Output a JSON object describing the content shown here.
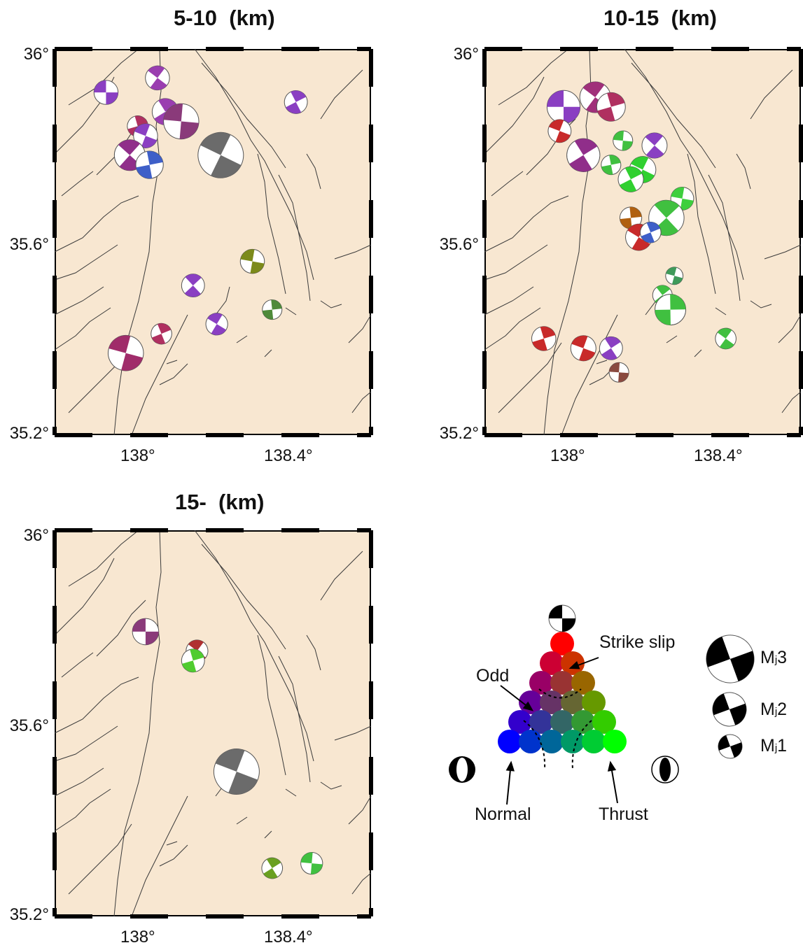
{
  "panels": [
    {
      "title": "5-10  (km)",
      "lat_labels": [
        "36°",
        "35.6°",
        "35.2°"
      ],
      "lon_labels": [
        "138°",
        "138.4°"
      ]
    },
    {
      "title": "10-15  (km)",
      "lat_labels": [
        "36°",
        "35.6°",
        "35.2°"
      ],
      "lon_labels": [
        "138°",
        "138.4°"
      ]
    },
    {
      "title": "15-  (km)",
      "lat_labels": [
        "36°",
        "35.6°",
        "35.2°"
      ],
      "lon_labels": [
        "138°",
        "138.4°"
      ]
    }
  ],
  "legend": {
    "strike_slip": "Strike slip",
    "odd": "Odd",
    "normal": "Normal",
    "thrust": "Thrust",
    "mj_prefix": "M",
    "mj_sub": "j",
    "magnitudes": [
      "3",
      "2",
      "1"
    ]
  },
  "colors": {
    "land": "#f8e7d1",
    "fault": "#444444",
    "strike_slip": "#ff2020",
    "normal": "#2020ff",
    "thrust": "#20ff20",
    "odd": "#9a30c8"
  },
  "events": {
    "panel_5_10": [
      {
        "lon": 137.93,
        "lat": 35.91,
        "mag": 1.4,
        "color": "#8a3fc2"
      },
      {
        "lon": 138.06,
        "lat": 35.94,
        "mag": 1.4,
        "color": "#9a3db0"
      },
      {
        "lon": 138.01,
        "lat": 35.84,
        "mag": 1.1,
        "color": "#b03060"
      },
      {
        "lon": 138.03,
        "lat": 35.82,
        "mag": 1.4,
        "color": "#8a3fc2"
      },
      {
        "lon": 138.08,
        "lat": 35.87,
        "mag": 1.6,
        "color": "#9a3db0"
      },
      {
        "lon": 138.12,
        "lat": 35.85,
        "mag": 2.4,
        "color": "#8a3a7a"
      },
      {
        "lon": 137.99,
        "lat": 35.78,
        "mag": 2.0,
        "color": "#902e8a"
      },
      {
        "lon": 138.04,
        "lat": 35.76,
        "mag": 1.7,
        "color": "#3e5fc8"
      },
      {
        "lon": 138.22,
        "lat": 35.78,
        "mag": 3.3,
        "color": "#6b6b6b"
      },
      {
        "lon": 138.41,
        "lat": 35.89,
        "mag": 1.3,
        "color": "#8a3fc2"
      },
      {
        "lon": 138.3,
        "lat": 35.56,
        "mag": 1.4,
        "color": "#7c8a1a"
      },
      {
        "lon": 138.15,
        "lat": 35.51,
        "mag": 1.3,
        "color": "#8a3fc2"
      },
      {
        "lon": 138.35,
        "lat": 35.46,
        "mag": 1.0,
        "color": "#4f8a3a"
      },
      {
        "lon": 138.21,
        "lat": 35.43,
        "mag": 1.2,
        "color": "#8a3fc2"
      },
      {
        "lon": 138.07,
        "lat": 35.41,
        "mag": 1.1,
        "color": "#b03060"
      },
      {
        "lon": 137.98,
        "lat": 35.37,
        "mag": 2.4,
        "color": "#a02c6a"
      }
    ],
    "panel_10_15": [
      {
        "lon": 138.0,
        "lat": 35.88,
        "mag": 2.2,
        "color": "#8a3fc2"
      },
      {
        "lon": 138.08,
        "lat": 35.9,
        "mag": 2.0,
        "color": "#a0307a"
      },
      {
        "lon": 138.12,
        "lat": 35.88,
        "mag": 1.8,
        "color": "#b03060"
      },
      {
        "lon": 137.99,
        "lat": 35.83,
        "mag": 1.3,
        "color": "#c82a2a"
      },
      {
        "lon": 138.05,
        "lat": 35.78,
        "mag": 2.2,
        "color": "#902e8a"
      },
      {
        "lon": 138.15,
        "lat": 35.81,
        "mag": 1.0,
        "color": "#40c040"
      },
      {
        "lon": 138.23,
        "lat": 35.8,
        "mag": 1.5,
        "color": "#8a3fc2"
      },
      {
        "lon": 138.12,
        "lat": 35.76,
        "mag": 1.0,
        "color": "#40c040"
      },
      {
        "lon": 138.2,
        "lat": 35.75,
        "mag": 1.6,
        "color": "#30d030"
      },
      {
        "lon": 138.17,
        "lat": 35.73,
        "mag": 1.5,
        "color": "#30d030"
      },
      {
        "lon": 138.3,
        "lat": 35.69,
        "mag": 1.3,
        "color": "#3ecf3e"
      },
      {
        "lon": 138.26,
        "lat": 35.65,
        "mag": 2.4,
        "color": "#40c040"
      },
      {
        "lon": 138.17,
        "lat": 35.65,
        "mag": 1.2,
        "color": "#b06010"
      },
      {
        "lon": 138.19,
        "lat": 35.61,
        "mag": 1.6,
        "color": "#c82a2a"
      },
      {
        "lon": 138.22,
        "lat": 35.62,
        "mag": 1.1,
        "color": "#3e5fc8"
      },
      {
        "lon": 138.28,
        "lat": 35.53,
        "mag": 0.8,
        "color": "#3f9a5a"
      },
      {
        "lon": 138.25,
        "lat": 35.49,
        "mag": 1.0,
        "color": "#40c040"
      },
      {
        "lon": 138.27,
        "lat": 35.46,
        "mag": 2.0,
        "color": "#40c040"
      },
      {
        "lon": 138.41,
        "lat": 35.4,
        "mag": 1.1,
        "color": "#40c040"
      },
      {
        "lon": 137.95,
        "lat": 35.4,
        "mag": 1.4,
        "color": "#c82a2a"
      },
      {
        "lon": 138.05,
        "lat": 35.38,
        "mag": 1.5,
        "color": "#c82a2a"
      },
      {
        "lon": 138.12,
        "lat": 35.38,
        "mag": 1.3,
        "color": "#8a3fc2"
      },
      {
        "lon": 138.14,
        "lat": 35.33,
        "mag": 1.0,
        "color": "#8a4a40"
      }
    ],
    "panel_15": [
      {
        "lon": 138.03,
        "lat": 35.79,
        "mag": 1.6,
        "color": "#8a3a7a"
      },
      {
        "lon": 138.16,
        "lat": 35.75,
        "mag": 1.2,
        "color": "#b03030"
      },
      {
        "lon": 138.15,
        "lat": 35.73,
        "mag": 1.3,
        "color": "#50cc30"
      },
      {
        "lon": 138.26,
        "lat": 35.5,
        "mag": 3.3,
        "color": "#6b6b6b"
      },
      {
        "lon": 138.35,
        "lat": 35.3,
        "mag": 1.1,
        "color": "#6aa020"
      },
      {
        "lon": 138.45,
        "lat": 35.31,
        "mag": 1.2,
        "color": "#40c040"
      }
    ]
  }
}
